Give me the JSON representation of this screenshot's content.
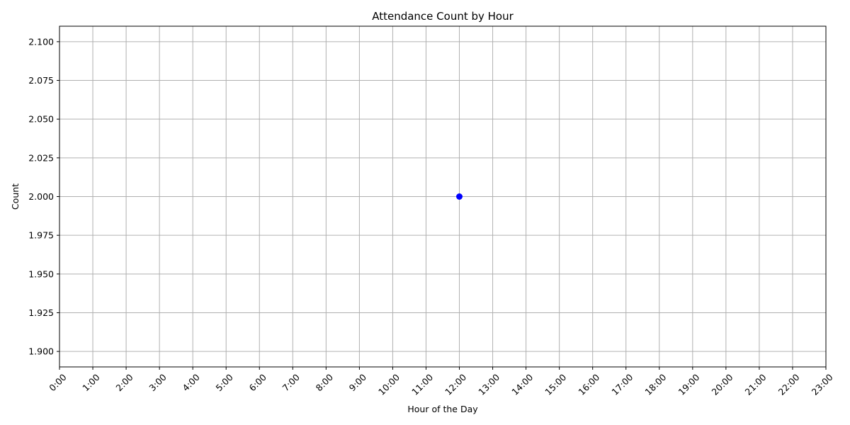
{
  "chart_data": {
    "type": "line",
    "title": "Attendance Count by Hour",
    "xlabel": "Hour of the Day",
    "ylabel": "Count",
    "x_ticks": [
      "0:00",
      "1:00",
      "2:00",
      "3:00",
      "4:00",
      "5:00",
      "6:00",
      "7:00",
      "8:00",
      "9:00",
      "10:00",
      "11:00",
      "12:00",
      "13:00",
      "14:00",
      "15:00",
      "16:00",
      "17:00",
      "18:00",
      "19:00",
      "20:00",
      "21:00",
      "22:00",
      "23:00"
    ],
    "y_ticks": [
      "1.900",
      "1.925",
      "1.950",
      "1.975",
      "2.000",
      "2.025",
      "2.050",
      "2.075",
      "2.100"
    ],
    "xlim": [
      0,
      23
    ],
    "ylim": [
      1.89,
      2.11
    ],
    "grid": true,
    "series": [
      {
        "x": [
          12
        ],
        "y": [
          2.0
        ],
        "color": "#0000ff",
        "marker": "circle"
      }
    ]
  }
}
